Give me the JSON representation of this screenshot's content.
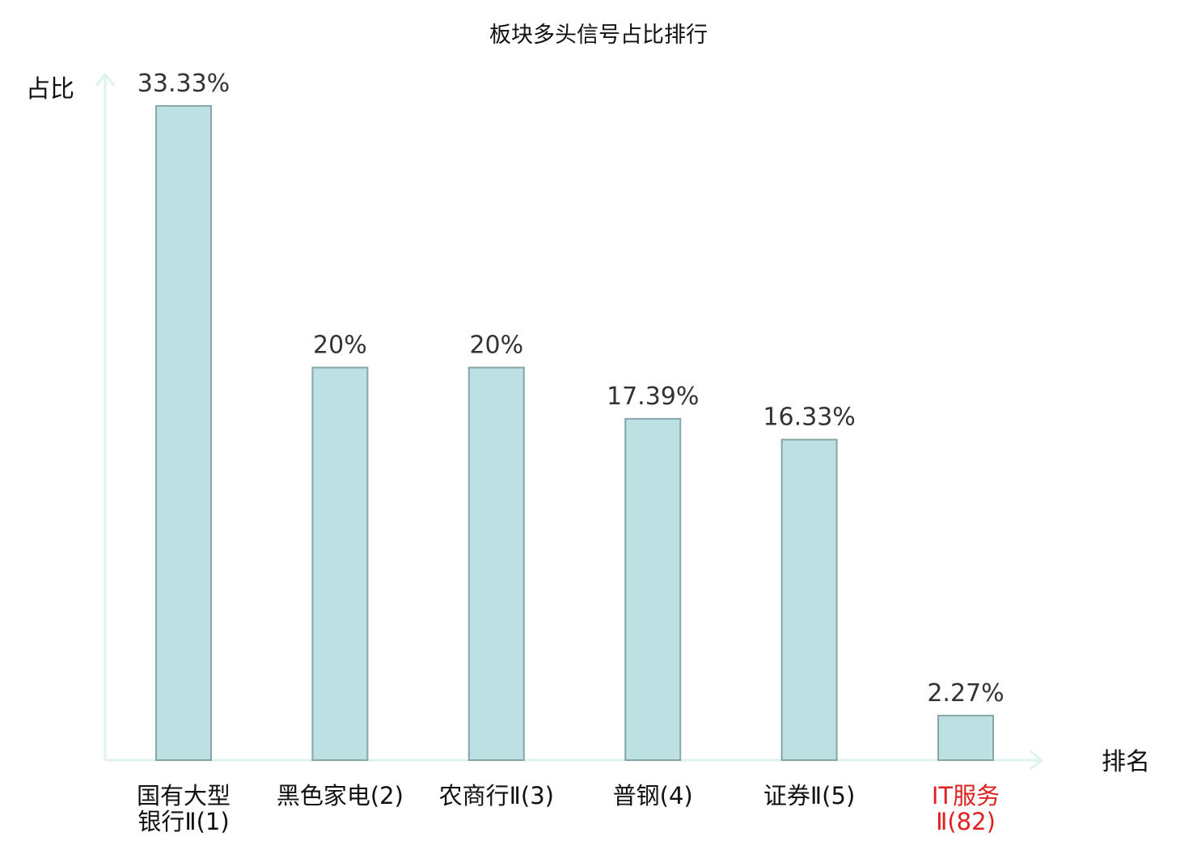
{
  "chart_data": {
    "type": "bar",
    "title": "板块多头信号占比排行",
    "ylabel": "占比",
    "xlabel": "排名",
    "categories": [
      {
        "lines": [
          "国有大型",
          "银行Ⅱ(1)"
        ],
        "highlight": false
      },
      {
        "lines": [
          "黑色家电(2)"
        ],
        "highlight": false
      },
      {
        "lines": [
          "农商行Ⅱ(3)"
        ],
        "highlight": false
      },
      {
        "lines": [
          "普钢(4)"
        ],
        "highlight": false
      },
      {
        "lines": [
          "证券Ⅱ(5)"
        ],
        "highlight": false
      },
      {
        "lines": [
          "IT服务",
          "Ⅱ(82)"
        ],
        "highlight": true
      }
    ],
    "values": [
      33.33,
      20,
      20,
      17.39,
      16.33,
      2.27
    ],
    "value_labels": [
      "33.33%",
      "20%",
      "20%",
      "17.39%",
      "16.33%",
      "2.27%"
    ],
    "ylim": [
      0,
      35
    ],
    "grid": false,
    "colors": {
      "bar_fill": "#bde0e3",
      "bar_stroke": "#86a6a8",
      "axis": "#e0f2ef",
      "category_text": "#111111",
      "highlight_text": "#e02020"
    }
  }
}
